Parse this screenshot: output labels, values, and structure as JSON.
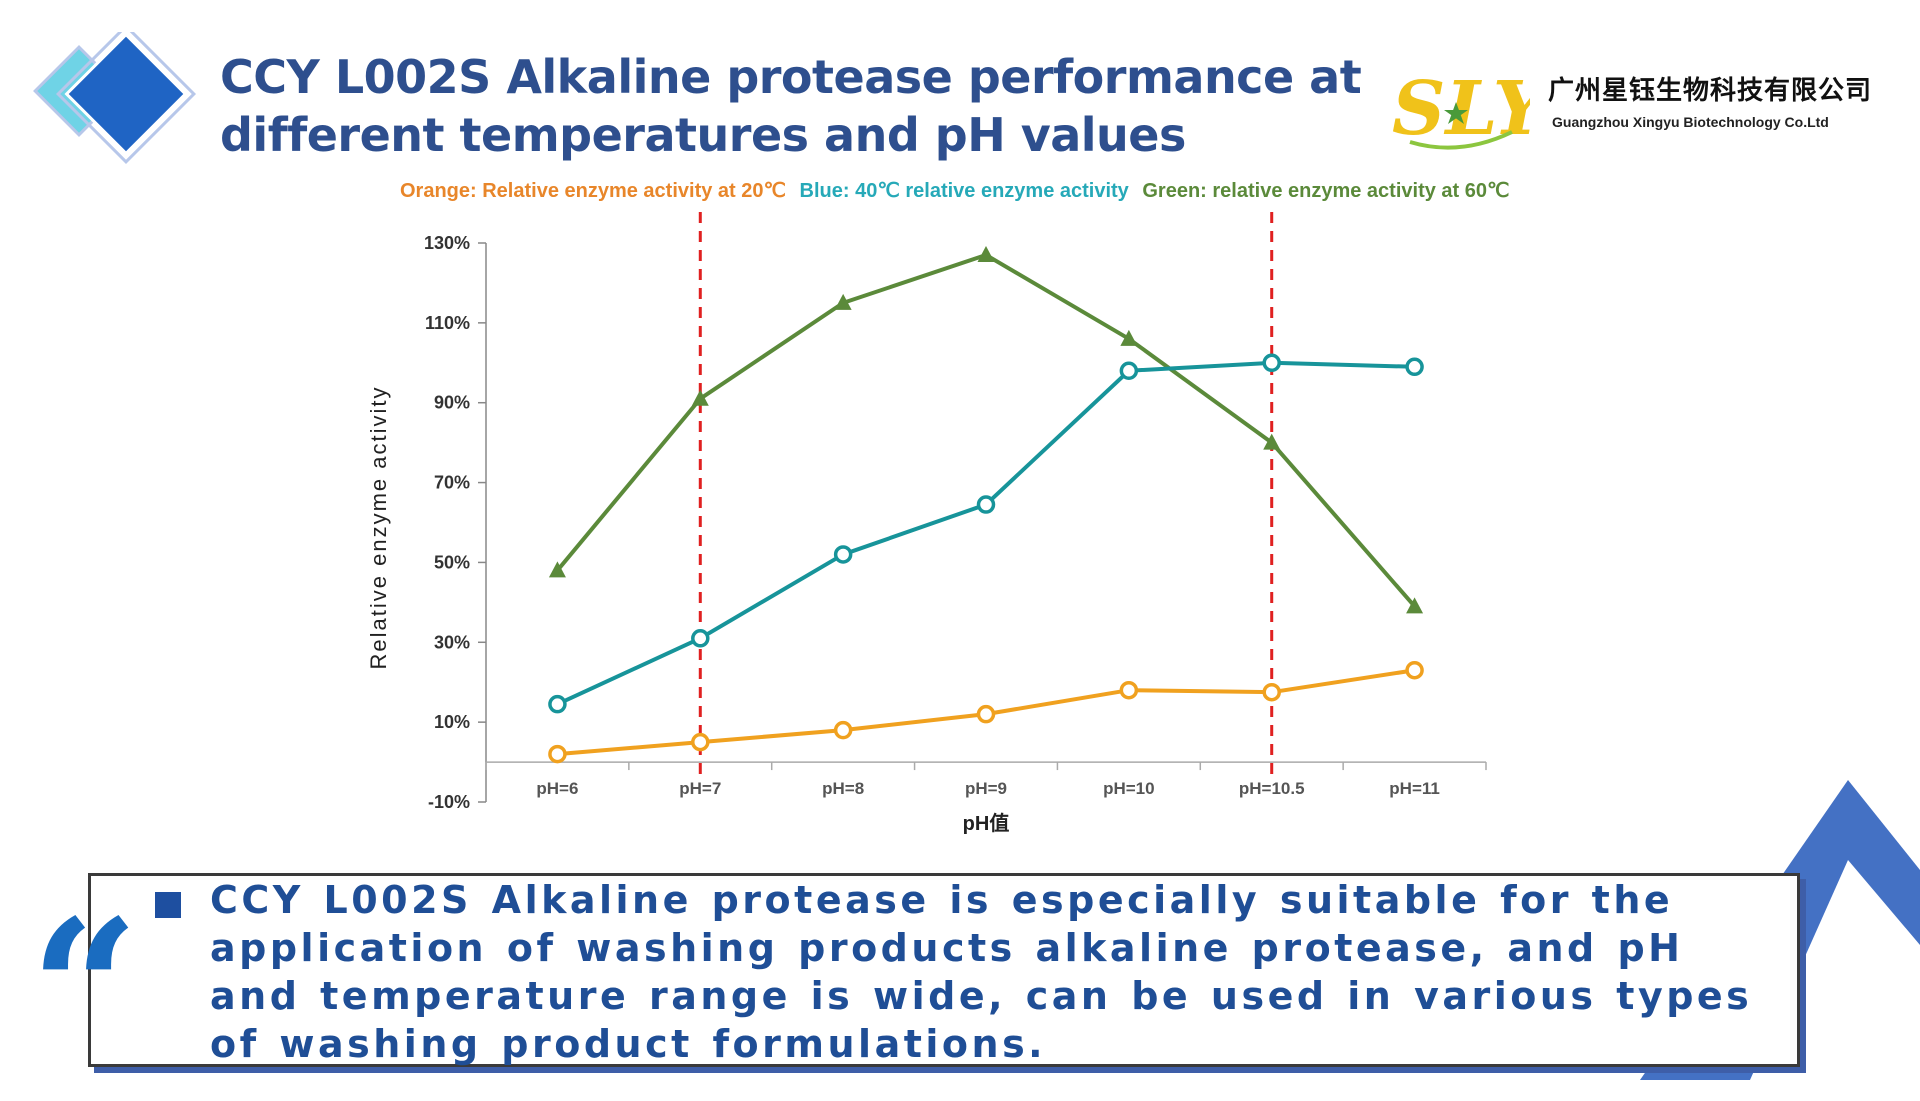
{
  "title": {
    "line1": "CCY L002S Alkaline protease performance at",
    "line2": "different temperatures and pH values"
  },
  "logo": {
    "mark_text": "SLY",
    "company_cn": "广州星钰生物科技有限公司",
    "company_en": "Guangzhou Xingyu Biotechnology Co.Ltd"
  },
  "legend_text": {
    "orange": "Orange: Relative enzyme activity at 20℃",
    "blue": "Blue: 40℃ relative enzyme activity",
    "green": "Green: relative enzyme activity at 60℃"
  },
  "colors": {
    "orange": "#f0a11f",
    "blue": "#17949a",
    "green": "#5b8a3a",
    "red_dash": "#e02020",
    "title": "#2e4f8e"
  },
  "chart_data": {
    "type": "line",
    "categories": [
      "pH=6",
      "pH=7",
      "pH=8",
      "pH=9",
      "pH=10",
      "pH=10.5",
      "pH=11"
    ],
    "ylabel": "Relative enzyme activity",
    "xlabel": "pH值",
    "ylim": [
      -10,
      130
    ],
    "yticks": [
      "-10%",
      "10%",
      "30%",
      "50%",
      "70%",
      "90%",
      "110%",
      "130%"
    ],
    "ytick_values": [
      -10,
      10,
      30,
      50,
      70,
      90,
      110,
      130
    ],
    "series": [
      {
        "key": "green",
        "marker": "triangle",
        "values": [
          48,
          91,
          115,
          127,
          106,
          80,
          39
        ]
      },
      {
        "key": "blue",
        "marker": "circle",
        "values": [
          14.5,
          31,
          52,
          64.5,
          98,
          100,
          99
        ]
      },
      {
        "key": "orange",
        "marker": "circle",
        "values": [
          2,
          5,
          8,
          12,
          18,
          17.5,
          23
        ]
      }
    ],
    "reference_lines_at": [
      "pH=7",
      "pH=10.5"
    ],
    "grid": false
  },
  "body": {
    "text": " CCY L002S Alkaline protease is especially suitable for the application of washing products alkaline protease, and pH and temperature range is wide, can be used in various types of washing product formulations."
  },
  "icons": {
    "quote": "quote-icon",
    "bullet": "square-bullet-icon"
  },
  "quote_glyph": "“"
}
